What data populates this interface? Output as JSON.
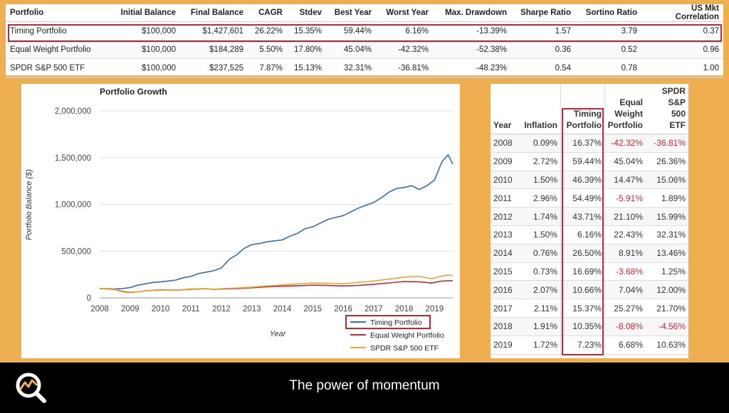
{
  "summary": {
    "headers": [
      "Portfolio",
      "Initial Balance",
      "Final Balance",
      "CAGR",
      "Stdev",
      "Best Year",
      "Worst Year",
      "Max. Drawdown",
      "Sharpe Ratio",
      "Sortino Ratio",
      "US Mkt Correlation"
    ],
    "rows": [
      [
        "Timing Portfolio",
        "$100,000",
        "$1,427,601",
        "26.22%",
        "15.35%",
        "59.44%",
        "6.16%",
        "-13.39%",
        "1.57",
        "3.79",
        "0.37"
      ],
      [
        "Equal Weight Portfolio",
        "$100,000",
        "$184,289",
        "5.50%",
        "17.80%",
        "45.04%",
        "-42.32%",
        "-52.38%",
        "0.36",
        "0.52",
        "0.96"
      ],
      [
        "SPDR S&P 500 ETF",
        "$100,000",
        "$237,525",
        "7.87%",
        "15.13%",
        "32.31%",
        "-36.81%",
        "-48.23%",
        "0.54",
        "0.78",
        "1.00"
      ]
    ]
  },
  "annual": {
    "headers": {
      "year": "Year",
      "inflation": "Inflation",
      "timing": [
        "Timing",
        "Portfolio"
      ],
      "equal": [
        "Equal",
        "Weight",
        "Portfolio"
      ],
      "spdr": [
        "SPDR",
        "S&P",
        "500",
        "ETF"
      ]
    },
    "rows": [
      [
        "2008",
        "0.09%",
        "16.37%",
        "-42.32%",
        "-36.81%"
      ],
      [
        "2009",
        "2.72%",
        "59.44%",
        "45.04%",
        "26.36%"
      ],
      [
        "2010",
        "1.50%",
        "46.39%",
        "14.47%",
        "15.06%"
      ],
      [
        "2011",
        "2.96%",
        "54.49%",
        "-5.91%",
        "1.89%"
      ],
      [
        "2012",
        "1.74%",
        "43.71%",
        "21.10%",
        "15.99%"
      ],
      [
        "2013",
        "1.50%",
        "6.16%",
        "22.43%",
        "32.31%"
      ],
      [
        "2014",
        "0.76%",
        "26.50%",
        "8.91%",
        "13.46%"
      ],
      [
        "2015",
        "0.73%",
        "16.69%",
        "-3.68%",
        "1.25%"
      ],
      [
        "2016",
        "2.07%",
        "10.66%",
        "7.04%",
        "12.00%"
      ],
      [
        "2017",
        "2.11%",
        "15.37%",
        "25.27%",
        "21.70%"
      ],
      [
        "2018",
        "1.91%",
        "10.35%",
        "-8.08%",
        "-4.56%"
      ],
      [
        "2019",
        "1.72%",
        "7.23%",
        "6.68%",
        "10.63%"
      ]
    ]
  },
  "chart_data": {
    "type": "line",
    "title": "Portfolio Growth",
    "xlabel": "Year",
    "ylabel": "Portfolio Balance ($)",
    "xlim": [
      2008,
      2019.6
    ],
    "ylim": [
      0,
      2000000
    ],
    "xticks": [
      "2008",
      "2009",
      "2010",
      "2011",
      "2012",
      "2013",
      "2014",
      "2015",
      "2016",
      "2017",
      "2018",
      "2019"
    ],
    "yticks": [
      "0",
      "500,000",
      "1,000,000",
      "1,500,000",
      "2,000,000"
    ],
    "grid": true,
    "legend_position": "bottom-right",
    "series": [
      {
        "name": "Timing Portfolio",
        "color": "#3B6AA8",
        "points": [
          [
            2008,
            100000
          ],
          [
            2008.25,
            98000
          ],
          [
            2008.5,
            95000
          ],
          [
            2008.75,
            100000
          ],
          [
            2009,
            110000
          ],
          [
            2009.25,
            135000
          ],
          [
            2009.5,
            150000
          ],
          [
            2009.75,
            165000
          ],
          [
            2010,
            170000
          ],
          [
            2010.25,
            180000
          ],
          [
            2010.5,
            190000
          ],
          [
            2010.75,
            215000
          ],
          [
            2011,
            230000
          ],
          [
            2011.25,
            260000
          ],
          [
            2011.5,
            275000
          ],
          [
            2011.75,
            290000
          ],
          [
            2012,
            320000
          ],
          [
            2012.25,
            410000
          ],
          [
            2012.5,
            460000
          ],
          [
            2012.75,
            530000
          ],
          [
            2013,
            570000
          ],
          [
            2013.25,
            580000
          ],
          [
            2013.5,
            600000
          ],
          [
            2013.75,
            610000
          ],
          [
            2014,
            620000
          ],
          [
            2014.25,
            660000
          ],
          [
            2014.5,
            690000
          ],
          [
            2014.75,
            740000
          ],
          [
            2015,
            760000
          ],
          [
            2015.25,
            800000
          ],
          [
            2015.5,
            840000
          ],
          [
            2015.75,
            860000
          ],
          [
            2016,
            880000
          ],
          [
            2016.25,
            920000
          ],
          [
            2016.5,
            960000
          ],
          [
            2016.75,
            990000
          ],
          [
            2017,
            1020000
          ],
          [
            2017.25,
            1070000
          ],
          [
            2017.5,
            1130000
          ],
          [
            2017.75,
            1170000
          ],
          [
            2018,
            1180000
          ],
          [
            2018.25,
            1200000
          ],
          [
            2018.5,
            1160000
          ],
          [
            2018.75,
            1200000
          ],
          [
            2019,
            1260000
          ],
          [
            2019.25,
            1460000
          ],
          [
            2019.45,
            1530000
          ],
          [
            2019.6,
            1430000
          ]
        ]
      },
      {
        "name": "Equal Weight Portfolio",
        "color": "#C0283A",
        "points": [
          [
            2008,
            100000
          ],
          [
            2008.25,
            95000
          ],
          [
            2008.5,
            88000
          ],
          [
            2008.75,
            68000
          ],
          [
            2009,
            58000
          ],
          [
            2009.25,
            64000
          ],
          [
            2009.5,
            75000
          ],
          [
            2009.75,
            80000
          ],
          [
            2010,
            85000
          ],
          [
            2010.5,
            82000
          ],
          [
            2011,
            92000
          ],
          [
            2011.5,
            98000
          ],
          [
            2011.75,
            90000
          ],
          [
            2012,
            95000
          ],
          [
            2012.5,
            100000
          ],
          [
            2013,
            108000
          ],
          [
            2013.5,
            118000
          ],
          [
            2014,
            125000
          ],
          [
            2014.5,
            130000
          ],
          [
            2015,
            135000
          ],
          [
            2015.5,
            132000
          ],
          [
            2016,
            128000
          ],
          [
            2016.5,
            133000
          ],
          [
            2017,
            145000
          ],
          [
            2017.5,
            160000
          ],
          [
            2018,
            175000
          ],
          [
            2018.5,
            172000
          ],
          [
            2018.9,
            158000
          ],
          [
            2019.2,
            178000
          ],
          [
            2019.6,
            184289
          ]
        ]
      },
      {
        "name": "SPDR S&P 500 ETF",
        "color": "#E8A530",
        "points": [
          [
            2008,
            100000
          ],
          [
            2008.25,
            95000
          ],
          [
            2008.5,
            90000
          ],
          [
            2008.75,
            72000
          ],
          [
            2009,
            60000
          ],
          [
            2009.25,
            65000
          ],
          [
            2009.5,
            75000
          ],
          [
            2009.75,
            82000
          ],
          [
            2010,
            88000
          ],
          [
            2010.5,
            82000
          ],
          [
            2011,
            96000
          ],
          [
            2011.5,
            100000
          ],
          [
            2011.75,
            92000
          ],
          [
            2012,
            98000
          ],
          [
            2012.5,
            105000
          ],
          [
            2013,
            115000
          ],
          [
            2013.5,
            128000
          ],
          [
            2014,
            138000
          ],
          [
            2014.5,
            150000
          ],
          [
            2015,
            158000
          ],
          [
            2015.5,
            156000
          ],
          [
            2016,
            152000
          ],
          [
            2016.5,
            165000
          ],
          [
            2017,
            180000
          ],
          [
            2017.5,
            200000
          ],
          [
            2018,
            222000
          ],
          [
            2018.5,
            230000
          ],
          [
            2018.9,
            205000
          ],
          [
            2019.2,
            230000
          ],
          [
            2019.45,
            245000
          ],
          [
            2019.6,
            237525
          ]
        ]
      }
    ]
  },
  "caption": "The power of momentum",
  "colors": {
    "background": "#EFAE50",
    "highlight": "#C0283A",
    "bar": "#000000"
  }
}
